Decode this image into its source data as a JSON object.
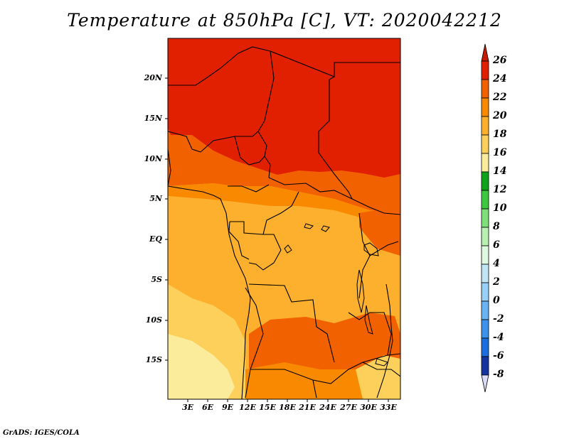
{
  "title": "Temperature at 850hPa [C], VT: 2020042212",
  "credit": "GrADS: IGES/COLA",
  "map": {
    "variable": "Temperature at 850hPa",
    "units": "C",
    "valid_time": "2020042212",
    "lat_labels": [
      "20N",
      "15N",
      "10N",
      "5N",
      "EQ",
      "5S",
      "10S",
      "15S"
    ],
    "lon_labels": [
      "3E",
      "6E",
      "9E",
      "12E",
      "15E",
      "18E",
      "21E",
      "24E",
      "27E",
      "30E",
      "33E"
    ]
  },
  "colorbar": {
    "labels": [
      "26",
      "24",
      "22",
      "20",
      "18",
      "16",
      "14",
      "12",
      "10",
      "8",
      "6",
      "4",
      "2",
      "0",
      "-2",
      "-4",
      "-6",
      "-8"
    ],
    "colors": [
      "#e02000",
      "#eb3c00",
      "#f26100",
      "#f98a00",
      "#fdb02e",
      "#fcd05a",
      "#fbec9c",
      "#0da41b",
      "#3cc840",
      "#7ee07a",
      "#b7f0b0",
      "#dff8e0",
      "#c0e6f6",
      "#98d0f8",
      "#6ab4f4",
      "#3c93ec",
      "#1c6ee0",
      "#1a50c8",
      "#1434a0",
      "#0c1f7c"
    ],
    "top_color": "#c31b00",
    "bottom_color": "#d8dcf4"
  }
}
